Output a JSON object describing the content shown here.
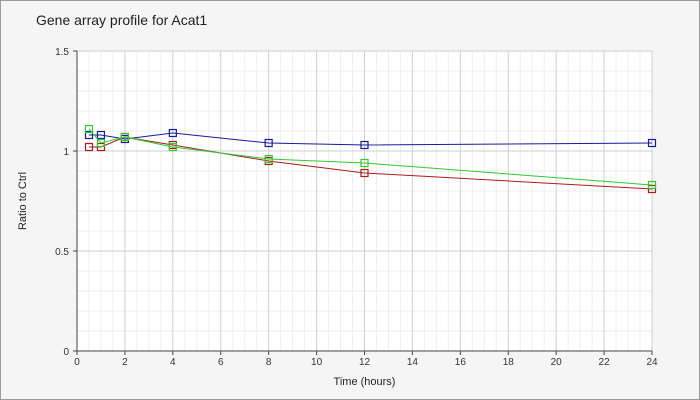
{
  "chart_data": {
    "type": "line",
    "title": "Gene array profile for Acat1",
    "xlabel": "Time (hours)",
    "ylabel": "Ratio to Ctrl",
    "xlim": [
      0,
      24
    ],
    "ylim": [
      0,
      1.5
    ],
    "x_ticks": [
      "0",
      "2",
      "4",
      "6",
      "8",
      "10",
      "12",
      "14",
      "16",
      "18",
      "20",
      "22",
      "24"
    ],
    "x_tick_values": [
      0,
      2,
      4,
      6,
      8,
      10,
      12,
      14,
      16,
      18,
      20,
      22,
      24
    ],
    "y_ticks": [
      "0",
      "0.5",
      "1",
      "1.5"
    ],
    "y_tick_values": [
      0,
      0.5,
      1,
      1.5
    ],
    "grid": true,
    "series": [
      {
        "color": "#1a1a9e",
        "x": [
          0.5,
          1,
          2,
          4,
          8,
          12,
          24
        ],
        "y": [
          1.08,
          1.08,
          1.06,
          1.09,
          1.04,
          1.03,
          1.04
        ]
      },
      {
        "color": "#b01a1a",
        "x": [
          0.5,
          1,
          2,
          4,
          8,
          12,
          24
        ],
        "y": [
          1.02,
          1.02,
          1.07,
          1.03,
          0.95,
          0.89,
          0.81
        ]
      },
      {
        "color": "#2ecc2e",
        "x": [
          0.5,
          1,
          2,
          4,
          8,
          12,
          24
        ],
        "y": [
          1.11,
          1.04,
          1.07,
          1.02,
          0.96,
          0.94,
          0.83
        ]
      }
    ]
  }
}
